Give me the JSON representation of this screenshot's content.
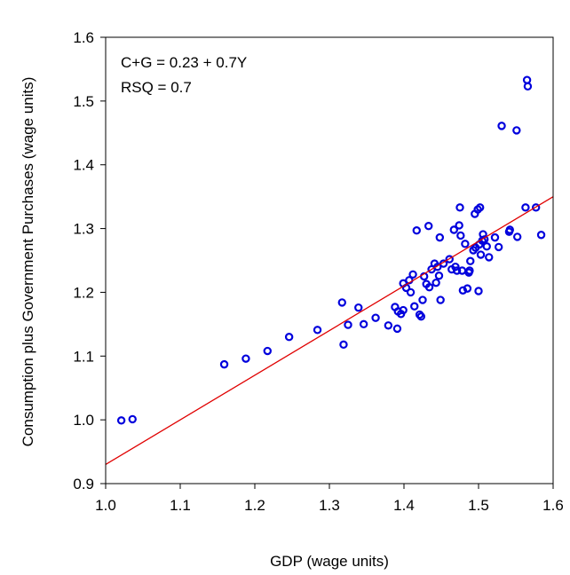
{
  "chart_data": {
    "type": "scatter",
    "title": "",
    "xlabel": "GDP (wage units)",
    "ylabel": "Consumption plus Government Purchases (wage units)",
    "xlim": [
      1.0,
      1.6
    ],
    "ylim": [
      0.9,
      1.6
    ],
    "xticks": [
      "1.0",
      "1.1",
      "1.2",
      "1.3",
      "1.4",
      "1.5",
      "1.6"
    ],
    "yticks": [
      "0.9",
      "1.0",
      "1.1",
      "1.2",
      "1.3",
      "1.4",
      "1.5",
      "1.6"
    ],
    "grid": false,
    "annotations": [
      "C+G = 0.23 + 0.7Y",
      "RSQ = 0.7"
    ],
    "regression": {
      "intercept": 0.23,
      "slope": 0.7,
      "color": "#e00000"
    },
    "point_color": "#0000dd",
    "points": [
      [
        1.021,
        0.999
      ],
      [
        1.036,
        1.001
      ],
      [
        1.159,
        1.087
      ],
      [
        1.188,
        1.096
      ],
      [
        1.217,
        1.108
      ],
      [
        1.246,
        1.13
      ],
      [
        1.284,
        1.141
      ],
      [
        1.317,
        1.184
      ],
      [
        1.319,
        1.118
      ],
      [
        1.325,
        1.149
      ],
      [
        1.339,
        1.176
      ],
      [
        1.346,
        1.15
      ],
      [
        1.362,
        1.16
      ],
      [
        1.379,
        1.148
      ],
      [
        1.388,
        1.177
      ],
      [
        1.391,
        1.143
      ],
      [
        1.392,
        1.17
      ],
      [
        1.396,
        1.166
      ],
      [
        1.399,
        1.172
      ],
      [
        1.399,
        1.214
      ],
      [
        1.403,
        1.207
      ],
      [
        1.407,
        1.219
      ],
      [
        1.409,
        1.2
      ],
      [
        1.412,
        1.228
      ],
      [
        1.414,
        1.178
      ],
      [
        1.417,
        1.297
      ],
      [
        1.421,
        1.165
      ],
      [
        1.423,
        1.162
      ],
      [
        1.425,
        1.188
      ],
      [
        1.427,
        1.225
      ],
      [
        1.43,
        1.213
      ],
      [
        1.433,
        1.304
      ],
      [
        1.434,
        1.208
      ],
      [
        1.437,
        1.236
      ],
      [
        1.441,
        1.245
      ],
      [
        1.443,
        1.215
      ],
      [
        1.445,
        1.24
      ],
      [
        1.447,
        1.226
      ],
      [
        1.448,
        1.286
      ],
      [
        1.449,
        1.188
      ],
      [
        1.453,
        1.245
      ],
      [
        1.461,
        1.252
      ],
      [
        1.464,
        1.236
      ],
      [
        1.467,
        1.298
      ],
      [
        1.469,
        1.24
      ],
      [
        1.471,
        1.234
      ],
      [
        1.474,
        1.305
      ],
      [
        1.475,
        1.333
      ],
      [
        1.476,
        1.289
      ],
      [
        1.478,
        1.234
      ],
      [
        1.479,
        1.203
      ],
      [
        1.482,
        1.276
      ],
      [
        1.485,
        1.206
      ],
      [
        1.487,
        1.231
      ],
      [
        1.488,
        1.234
      ],
      [
        1.489,
        1.249
      ],
      [
        1.493,
        1.266
      ],
      [
        1.495,
        1.323
      ],
      [
        1.496,
        1.27
      ],
      [
        1.499,
        1.33
      ],
      [
        1.5,
        1.202
      ],
      [
        1.501,
        1.275
      ],
      [
        1.502,
        1.333
      ],
      [
        1.503,
        1.259
      ],
      [
        1.505,
        1.281
      ],
      [
        1.506,
        1.291
      ],
      [
        1.508,
        1.283
      ],
      [
        1.511,
        1.272
      ],
      [
        1.514,
        1.255
      ],
      [
        1.522,
        1.286
      ],
      [
        1.527,
        1.271
      ],
      [
        1.531,
        1.461
      ],
      [
        1.541,
        1.295
      ],
      [
        1.542,
        1.298
      ],
      [
        1.551,
        1.454
      ],
      [
        1.552,
        1.287
      ],
      [
        1.563,
        1.333
      ],
      [
        1.565,
        1.533
      ],
      [
        1.566,
        1.523
      ],
      [
        1.577,
        1.333
      ],
      [
        1.584,
        1.29
      ]
    ]
  }
}
